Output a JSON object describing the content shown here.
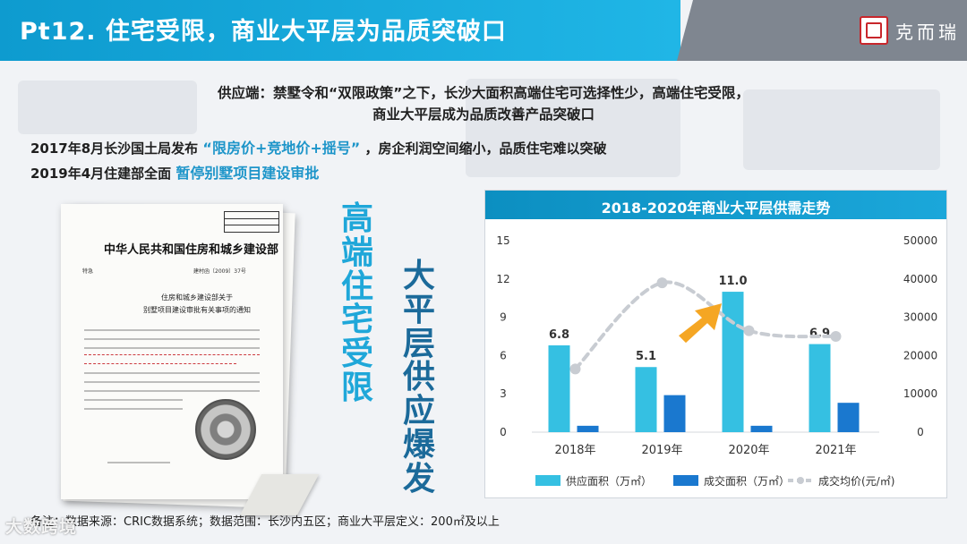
{
  "slide": {
    "title": "Pt12. 住宅受限，商业大平层为品质突破口",
    "logo_text": "克而瑞"
  },
  "summary": {
    "line1": "供应端：禁墅令和“双限政策”之下，长沙大面积高端住宅可选择性少，高端住宅受限，",
    "line2": "商业大平层成为品质改善产品突破口"
  },
  "policies": [
    {
      "prefix": "2017年8月长沙国土局发布 ",
      "highlight": "“限房价+竞地价+摇号”",
      "suffix": "，房企利润空间缩小，品质住宅难以突破"
    },
    {
      "prefix": "2019年4月住建部全面 ",
      "highlight": "暂停别墅项目建设审批",
      "suffix": ""
    }
  ],
  "document": {
    "header": "中华人民共和国住房和城乡建设部",
    "number": "建村函〔2009〕37号",
    "urgency": "特急",
    "subject_line1": "住房和城乡建设部关于",
    "subject_line2": "别墅项目建设审批有关事项的通知"
  },
  "vertical_texts": {
    "a": "高端住宅受限",
    "b": "大平层供应爆发"
  },
  "chart_data": {
    "type": "bar",
    "title": "2018-2020年商业大平层供需走势",
    "categories": [
      "2018年",
      "2019年",
      "2020年",
      "2021年"
    ],
    "series": [
      {
        "name": "供应面积（万㎡）",
        "type": "bar",
        "axis": "left",
        "color": "#35c0e2",
        "values": [
          6.8,
          5.1,
          11.0,
          6.9
        ],
        "data_labels": [
          "6.8",
          "5.1",
          "11.0",
          "6.9"
        ]
      },
      {
        "name": "成交面积（万㎡）",
        "type": "bar",
        "axis": "left",
        "color": "#1a78cf",
        "values": [
          0.5,
          2.9,
          0.5,
          2.3
        ]
      },
      {
        "name": "成交均价(元/㎡)",
        "type": "line",
        "axis": "right",
        "color": "#c8ccd2",
        "style": "dashed",
        "smooth": true,
        "values": [
          16500,
          39000,
          26500,
          25000
        ]
      }
    ],
    "y_left": {
      "min": 0,
      "max": 15,
      "ticks": [
        "0",
        "3",
        "6",
        "9",
        "12",
        "15"
      ]
    },
    "y_right": {
      "min": 0,
      "max": 50000,
      "ticks": [
        "0",
        "10000",
        "20000",
        "30000",
        "40000",
        "50000"
      ]
    },
    "grid": false,
    "legend_position": "bottom",
    "annotation": "upward-arrow"
  },
  "footnote": "备注：数据来源：CRIC数据系统；数据范围：长沙内五区；商业大平层定义：200㎡及以上",
  "watermark": "大数跨境",
  "colors": {
    "title_bar": "#14a8dc",
    "accent_blue": "#1d95c9",
    "supply_bar": "#35c0e2",
    "deal_bar": "#1a78cf",
    "price_line": "#c8ccd2",
    "arrow": "#f5a623"
  }
}
